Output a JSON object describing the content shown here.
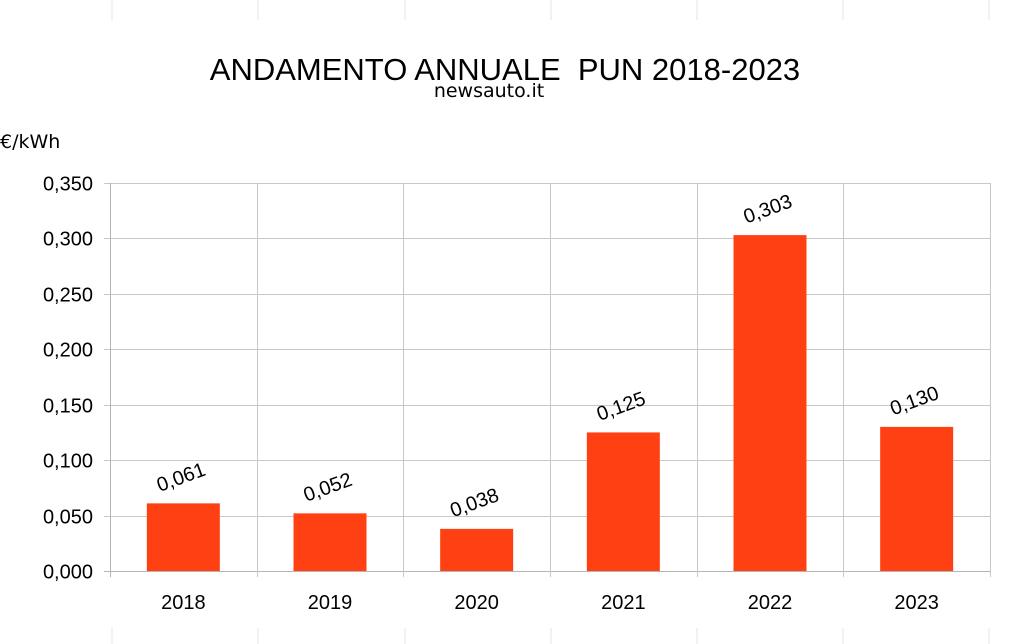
{
  "chart_data": {
    "type": "bar",
    "title": "ANDAMENTO ANNUALE  PUN 2018-2023",
    "subtitle": "newsauto.it",
    "ylabel": "€/kWh",
    "xlabel": "",
    "categories": [
      "2018",
      "2019",
      "2020",
      "2021",
      "2022",
      "2023"
    ],
    "values": [
      0.061,
      0.052,
      0.038,
      0.125,
      0.303,
      0.13
    ],
    "data_labels": [
      "0,061",
      "0,052",
      "0,038",
      "0,125",
      "0,303",
      "0,130"
    ],
    "ylim": [
      0,
      0.35
    ],
    "yticks": [
      0,
      0.05,
      0.1,
      0.15,
      0.2,
      0.25,
      0.3,
      0.35
    ],
    "ytick_labels": [
      "0,000",
      "0,050",
      "0,100",
      "0,150",
      "0,200",
      "0,250",
      "0,300",
      "0,350"
    ],
    "grid": true,
    "legend": "none",
    "colors": {
      "bar": "#FF4013",
      "grid": "#C8C8C8",
      "axis": "#B4B4B4"
    }
  }
}
